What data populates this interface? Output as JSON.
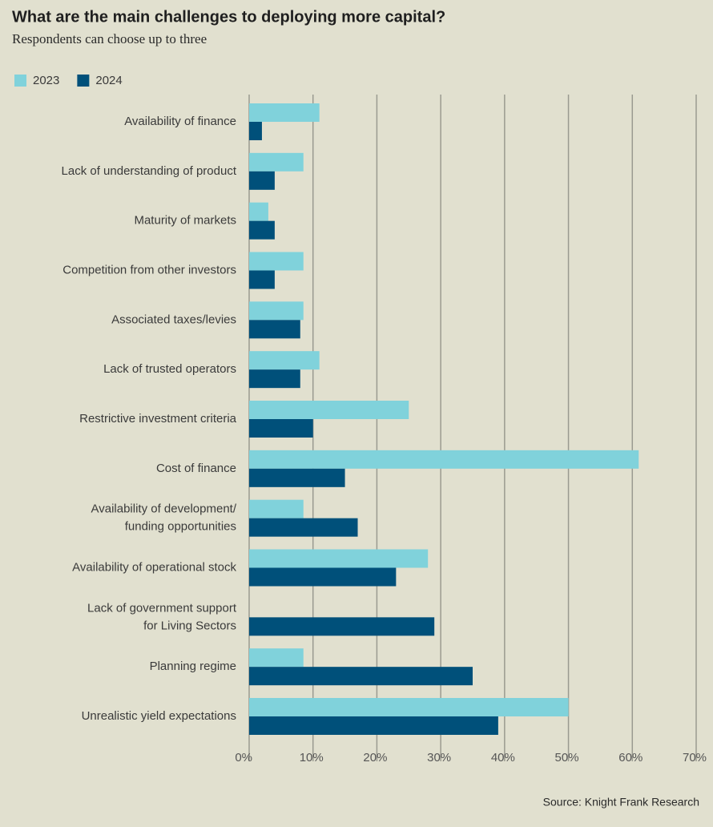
{
  "chart_data": {
    "type": "bar",
    "orientation": "horizontal",
    "title": "What are the main challenges to deploying more capital?",
    "subtitle": "Respondents can choose up to three",
    "source": "Source: Knight Frank Research",
    "categories": [
      "Availability of finance",
      "Lack of understanding of product",
      "Maturity of markets",
      "Competition from other investors",
      "Associated taxes/levies",
      "Lack of trusted operators",
      "Restrictive investment criteria",
      "Cost of finance",
      "Availability of development/\nfunding opportunities",
      "Availability of operational stock",
      "Lack of government support\nfor Living Sectors",
      "Planning regime",
      "Unrealistic yield expectations"
    ],
    "series": [
      {
        "name": "2023",
        "color": "#80d2db",
        "values": [
          11,
          8.5,
          3,
          8.5,
          8.5,
          11,
          25,
          61,
          8.5,
          28,
          0,
          8.5,
          50
        ]
      },
      {
        "name": "2024",
        "color": "#00507a",
        "values": [
          2,
          4,
          4,
          4,
          8,
          8,
          10,
          15,
          17,
          23,
          29,
          35,
          39
        ]
      }
    ],
    "xlim": [
      0,
      70
    ],
    "xticks": [
      {
        "value": 0,
        "label": "0%"
      },
      {
        "value": 10,
        "label": "10%"
      },
      {
        "value": 20,
        "label": "20%"
      },
      {
        "value": 30,
        "label": "30%"
      },
      {
        "value": 40,
        "label": "40%"
      },
      {
        "value": 50,
        "label": "50%"
      },
      {
        "value": 60,
        "label": "60%"
      },
      {
        "value": 70,
        "label": "70%"
      }
    ],
    "grid": true,
    "legend": "top-left"
  }
}
